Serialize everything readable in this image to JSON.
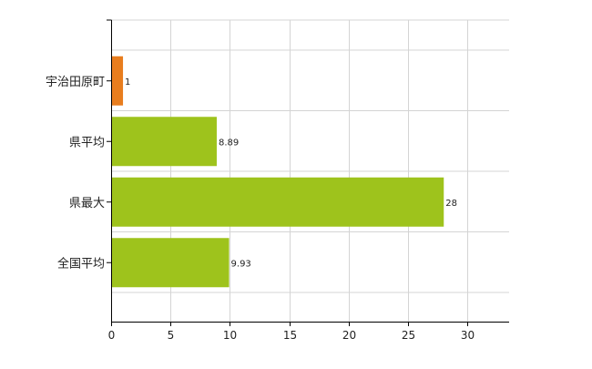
{
  "chart_data": {
    "type": "bar",
    "orientation": "horizontal",
    "categories": [
      "宇治田原町",
      "県平均",
      "県最大",
      "全国平均"
    ],
    "values": [
      1,
      8.89,
      28,
      9.93
    ],
    "data_labels": [
      "1",
      "8.89",
      "28",
      "9.93"
    ],
    "bar_colors": [
      "#e87d1e",
      "#9ec31c",
      "#9ec31c",
      "#9ec31c"
    ],
    "x_ticks": [
      0,
      5,
      10,
      15,
      20,
      25,
      30
    ],
    "xlim": [
      0,
      33.5
    ],
    "grid": true,
    "legend": "none",
    "title": "",
    "xlabel": "",
    "ylabel": ""
  }
}
